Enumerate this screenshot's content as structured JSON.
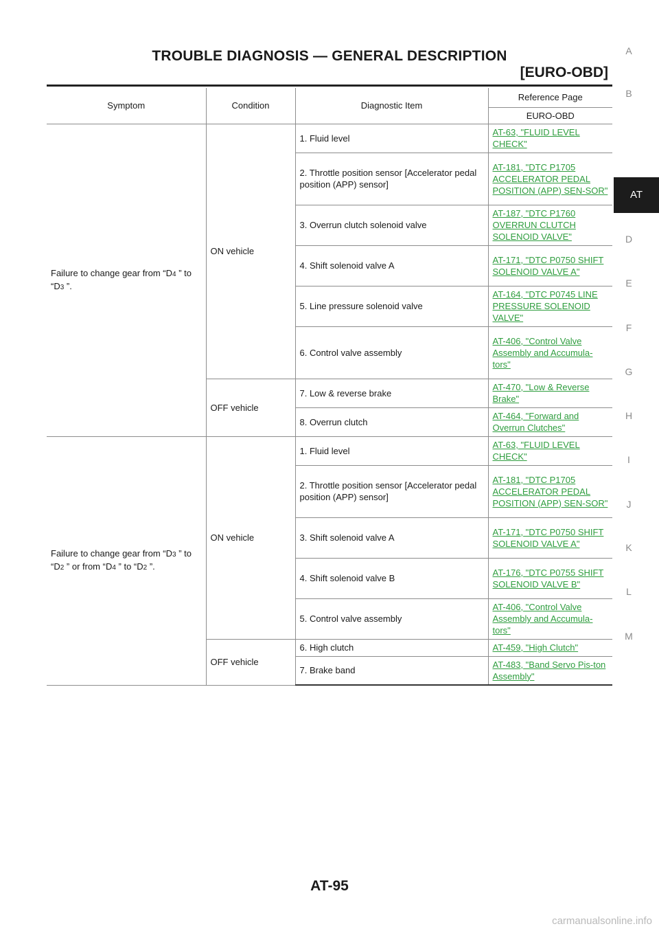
{
  "header": {
    "title": "TROUBLE DIAGNOSIS — GENERAL DESCRIPTION",
    "subtitle": "[EURO-OBD]"
  },
  "side_index": {
    "letters": [
      "A",
      "B",
      "AT",
      "D",
      "E",
      "F",
      "G",
      "H",
      "I",
      "J",
      "K",
      "L",
      "M"
    ],
    "active": "AT"
  },
  "table": {
    "headers": {
      "symptom": "Symptom",
      "condition": "Condition",
      "item": "Diagnostic Item",
      "reference": "Reference Page",
      "reference_sub": "EURO-OBD"
    },
    "groups": [
      {
        "symptom_parts": [
          "Failure to change gear from “D",
          "4",
          " ” to “D",
          "3",
          " ”."
        ],
        "conditions": [
          {
            "name": "ON vehicle",
            "items": [
              {
                "item": "1. Fluid level",
                "ref": "AT-63, \"FLUID LEVEL CHECK\""
              },
              {
                "item": "2. Throttle position sensor [Accelerator pedal position (APP) sensor]",
                "ref": "AT-181, \"DTC P1705 ACCELERATOR PEDAL POSITION (APP) SEN-SOR\""
              },
              {
                "item": "3. Overrun clutch solenoid valve",
                "ref": "AT-187, \"DTC P1760 OVERRUN CLUTCH SOLENOID VALVE\""
              },
              {
                "item": "4. Shift solenoid valve A",
                "ref": "AT-171, \"DTC P0750 SHIFT SOLENOID VALVE A\""
              },
              {
                "item": "5. Line pressure solenoid valve",
                "ref": "AT-164, \"DTC P0745 LINE PRESSURE SOLENOID VALVE\""
              },
              {
                "item": "6. Control valve assembly",
                "ref": "AT-406, \"Control Valve Assembly and Accumula-tors\""
              }
            ]
          },
          {
            "name": "OFF vehicle",
            "items": [
              {
                "item": "7. Low & reverse brake",
                "ref": "AT-470, \"Low & Reverse Brake\""
              },
              {
                "item": "8. Overrun clutch",
                "ref": "AT-464, \"Forward and Overrun Clutches\""
              }
            ]
          }
        ]
      },
      {
        "symptom_parts": [
          "Failure to change gear from “D",
          "3",
          " ” to “D",
          "2",
          " ” or from “D",
          "4",
          " ” to “D",
          "2",
          " ”."
        ],
        "conditions": [
          {
            "name": "ON vehicle",
            "items": [
              {
                "item": "1. Fluid level",
                "ref": "AT-63, \"FLUID LEVEL CHECK\""
              },
              {
                "item": "2. Throttle position sensor [Accelerator pedal position (APP) sensor]",
                "ref": "AT-181, \"DTC P1705 ACCELERATOR PEDAL POSITION (APP) SEN-SOR\""
              },
              {
                "item": "3. Shift solenoid valve A",
                "ref": "AT-171, \"DTC P0750 SHIFT SOLENOID VALVE A\""
              },
              {
                "item": "4. Shift solenoid valve B",
                "ref": "AT-176, \"DTC P0755 SHIFT SOLENOID VALVE B\""
              },
              {
                "item": "5. Control valve assembly",
                "ref": "AT-406, \"Control Valve Assembly and Accumula-tors\""
              }
            ]
          },
          {
            "name": "OFF vehicle",
            "items": [
              {
                "item": "6. High clutch",
                "ref": "AT-459, \"High Clutch\""
              },
              {
                "item": "7. Brake band",
                "ref": "AT-483, \"Band Servo Pis-ton Assembly\""
              }
            ]
          }
        ]
      }
    ]
  },
  "footer": {
    "page_number": "AT-95",
    "watermark": "carmanualsonline.info"
  },
  "colors": {
    "link": "#2e9d3e",
    "side_active_bg": "#1c1c1c",
    "text": "#1a1a1a"
  }
}
